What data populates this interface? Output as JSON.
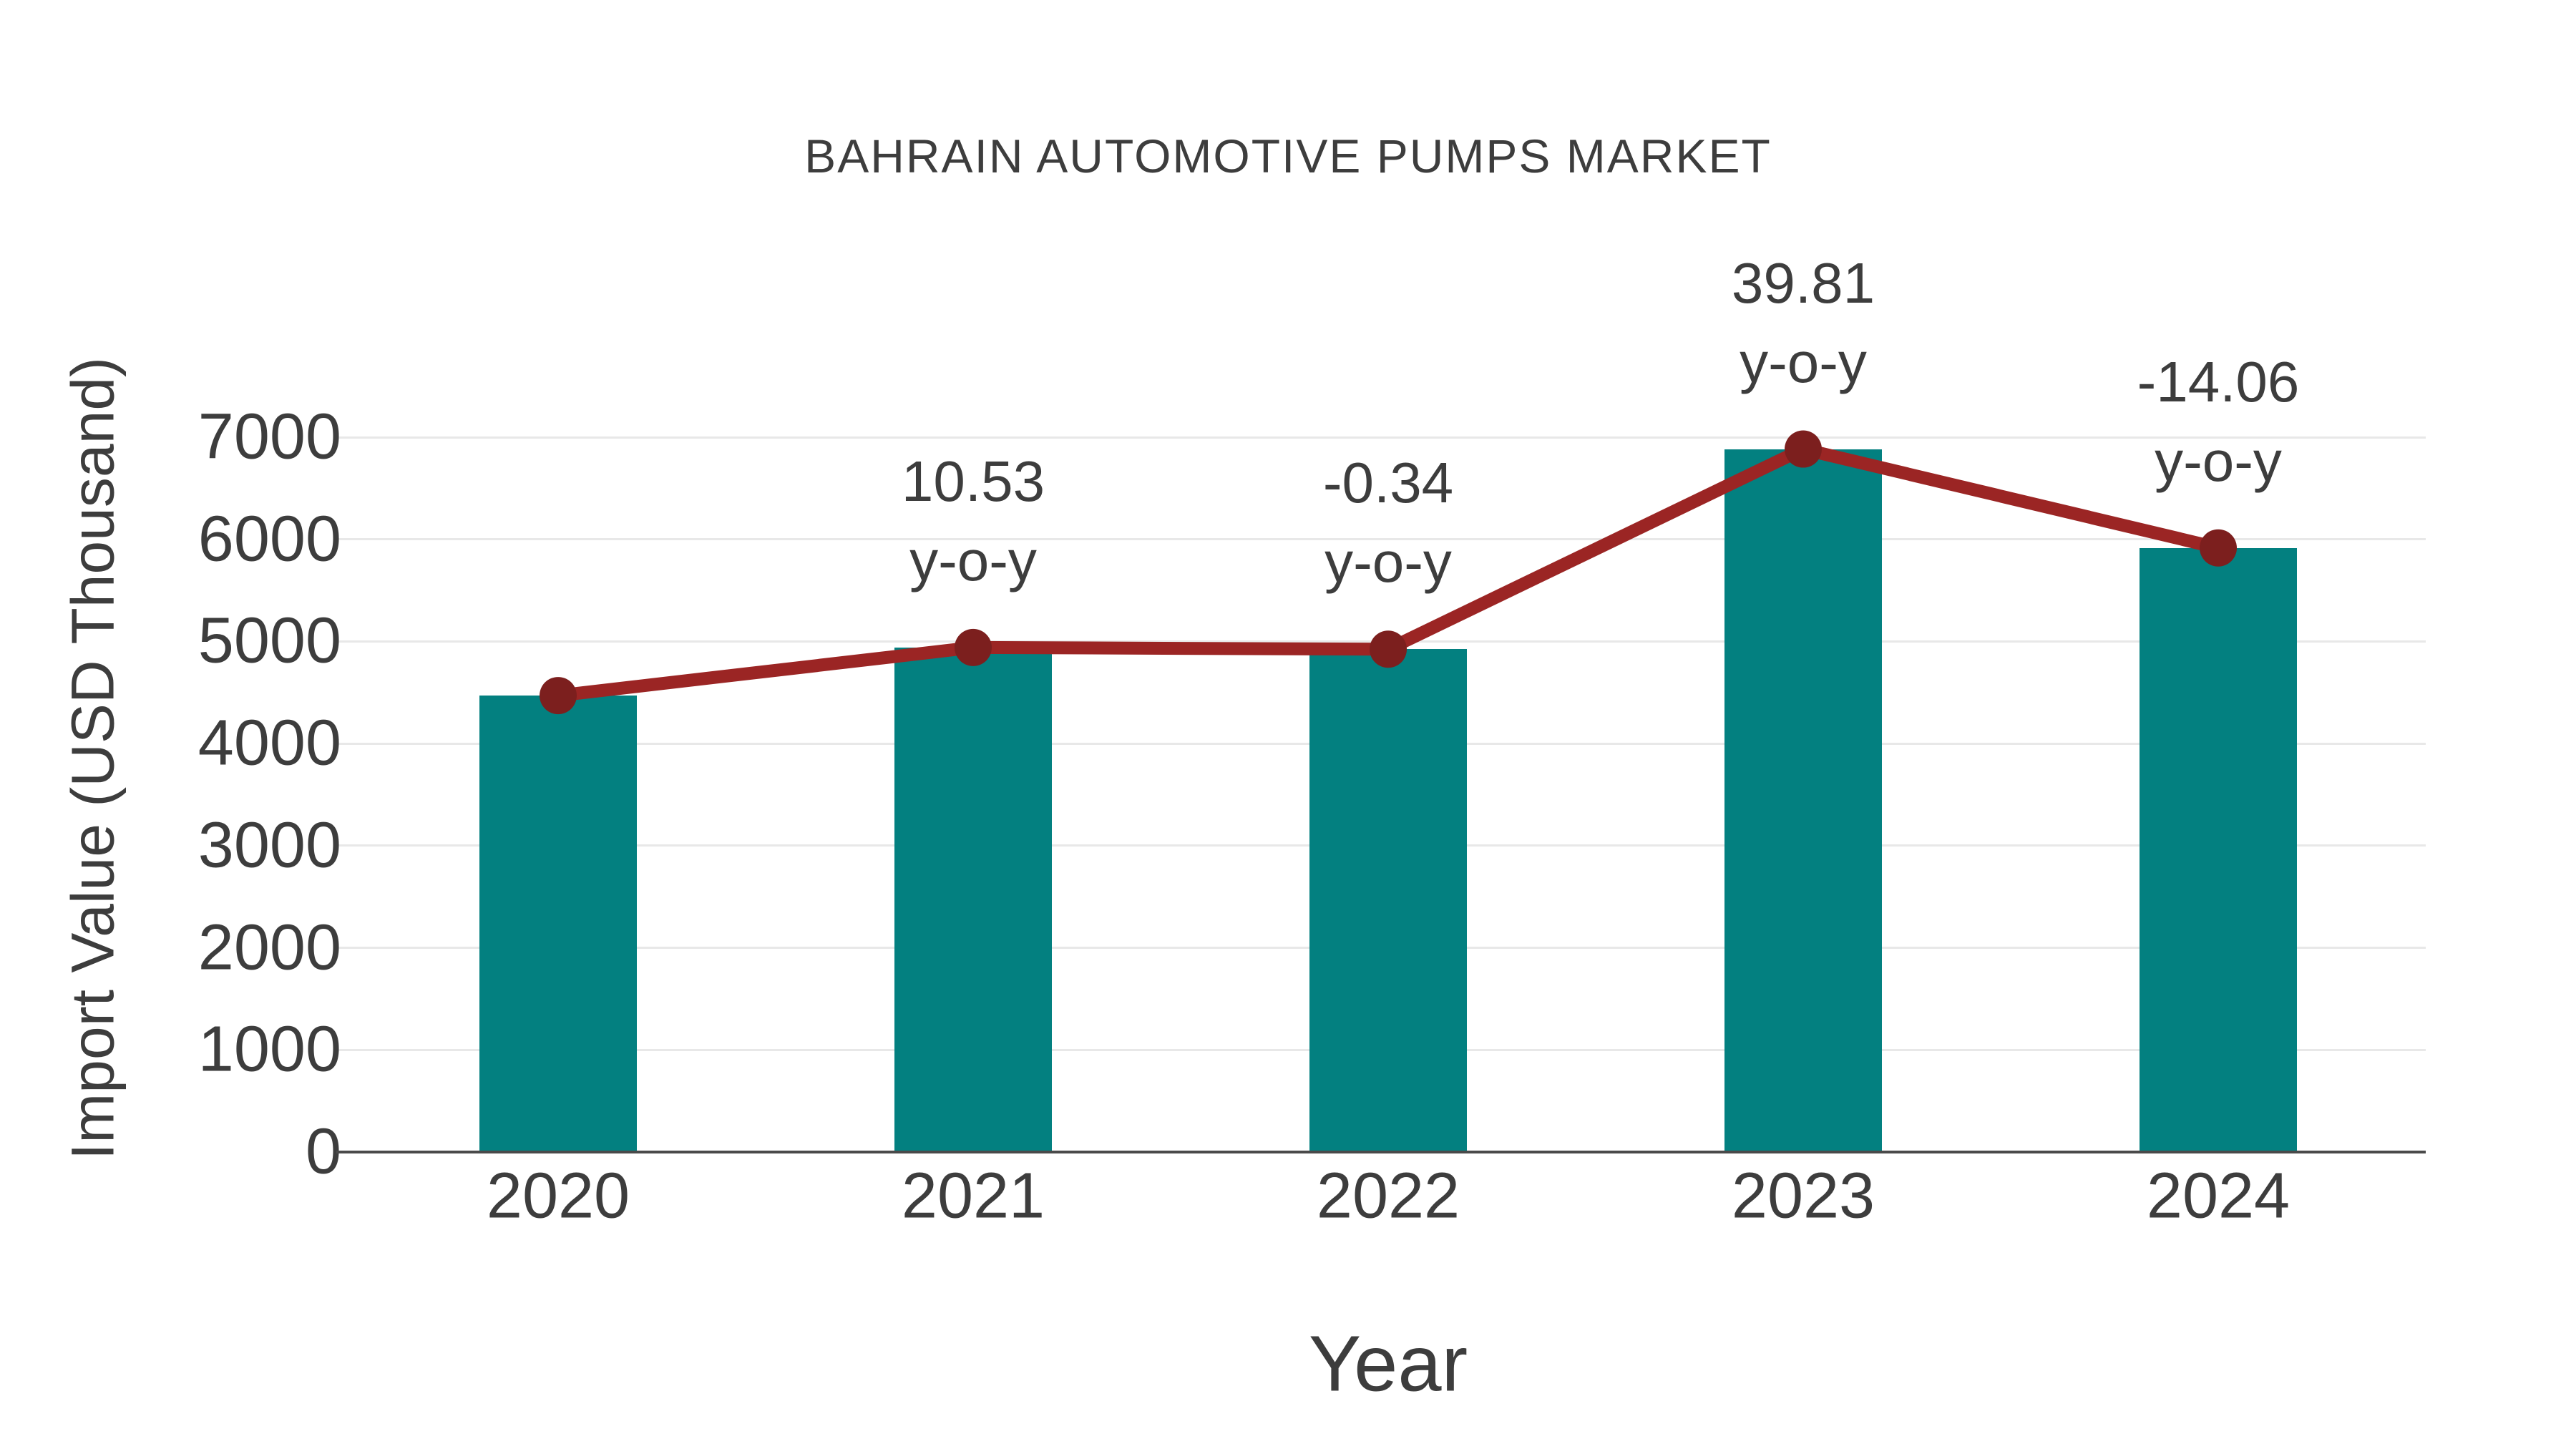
{
  "chart_data": {
    "type": "bar",
    "title": "BAHRAIN AUTOMOTIVE PUMPS MARKET",
    "xlabel": "Year",
    "ylabel": "Import Value (USD Thousand)",
    "categories": [
      "2020",
      "2021",
      "2022",
      "2023",
      "2024"
    ],
    "series": [
      {
        "name": "Import Value",
        "type": "bar",
        "values": [
          4470,
          4941,
          4924,
          6884,
          5916
        ]
      },
      {
        "name": "Import Value trend",
        "type": "line",
        "values": [
          4470,
          4941,
          4924,
          6884,
          5916
        ]
      }
    ],
    "annotations": [
      {
        "category": "2021",
        "line1": "10.53",
        "line2": "y-o-y"
      },
      {
        "category": "2022",
        "line1": "-0.34",
        "line2": "y-o-y"
      },
      {
        "category": "2023",
        "line1": "39.81",
        "line2": "y-o-y"
      },
      {
        "category": "2024",
        "line1": "-14.06",
        "line2": "y-o-y"
      }
    ],
    "ylim": [
      0,
      7000
    ],
    "yticks": [
      0,
      1000,
      2000,
      3000,
      4000,
      5000,
      6000,
      7000
    ],
    "grid": true,
    "legend_position": "none",
    "colors": {
      "bar": "#038080",
      "line": "#9b2524",
      "marker": "#7c1f1e",
      "text": "#3d3d3d",
      "grid": "#e8e8e8",
      "axis": "#4a4a4a",
      "background": "#ffffff"
    }
  }
}
